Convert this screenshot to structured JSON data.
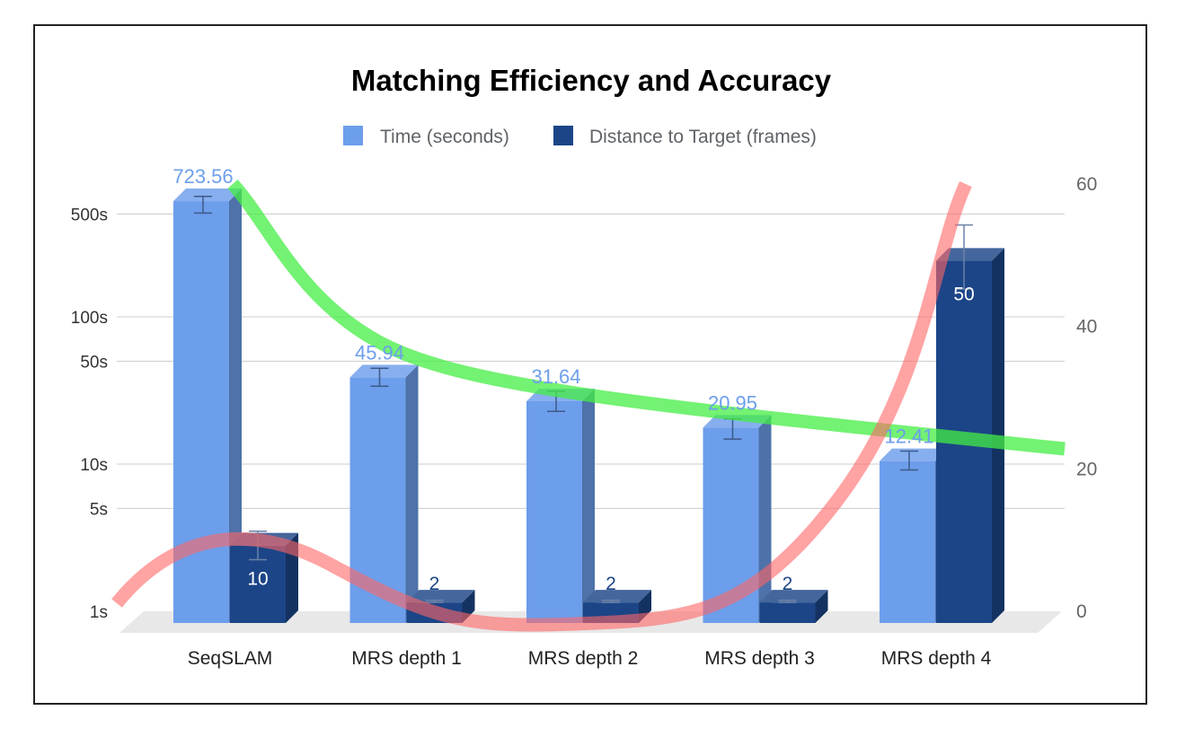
{
  "chart_data": {
    "type": "bar",
    "title": "Matching Efficiency and Accuracy",
    "categories": [
      "SeqSLAM",
      "MRS depth 1",
      "MRS depth 2",
      "MRS depth 3",
      "MRS depth 4"
    ],
    "series": [
      {
        "name": "Time (seconds)",
        "axis": "left",
        "scale": "log",
        "color": "#6d9eeb",
        "values": [
          723.56,
          45.94,
          31.64,
          20.95,
          12.41
        ],
        "labels": [
          "723.56",
          "45.94",
          "31.64",
          "20.95",
          "12.41"
        ],
        "error_bars": [
          [
            600,
            780
          ],
          [
            40,
            53
          ],
          [
            27,
            37
          ],
          [
            17.5,
            24
          ],
          [
            10.8,
            14.5
          ]
        ]
      },
      {
        "name": "Distance to Target (frames)",
        "axis": "right",
        "scale": "linear",
        "color": "#1c4587",
        "values": [
          10,
          2,
          2,
          2,
          50
        ],
        "labels": [
          "10",
          "2",
          "2",
          "2",
          "50"
        ],
        "error_bars": [
          [
            8,
            12
          ],
          [
            2,
            2.3
          ],
          [
            2,
            2.3
          ],
          [
            2,
            2.3
          ],
          [
            46,
            55
          ]
        ]
      }
    ],
    "left_axis": {
      "ticks": [
        1,
        5,
        10,
        50,
        100,
        500
      ],
      "tick_labels": [
        "1s",
        "5s",
        "10s",
        "50s",
        "100s",
        "500s"
      ],
      "ylim": [
        1,
        800
      ]
    },
    "right_axis": {
      "ticks": [
        0,
        20,
        40,
        60
      ],
      "tick_labels": [
        "0",
        "20",
        "40",
        "60"
      ],
      "ylim": [
        0,
        60
      ]
    },
    "trendlines": [
      {
        "series": "Time (seconds)",
        "color": "#44ee44"
      },
      {
        "series": "Distance to Target (frames)",
        "color": "#ff6666"
      }
    ],
    "legend_position": "top",
    "grid": true
  }
}
